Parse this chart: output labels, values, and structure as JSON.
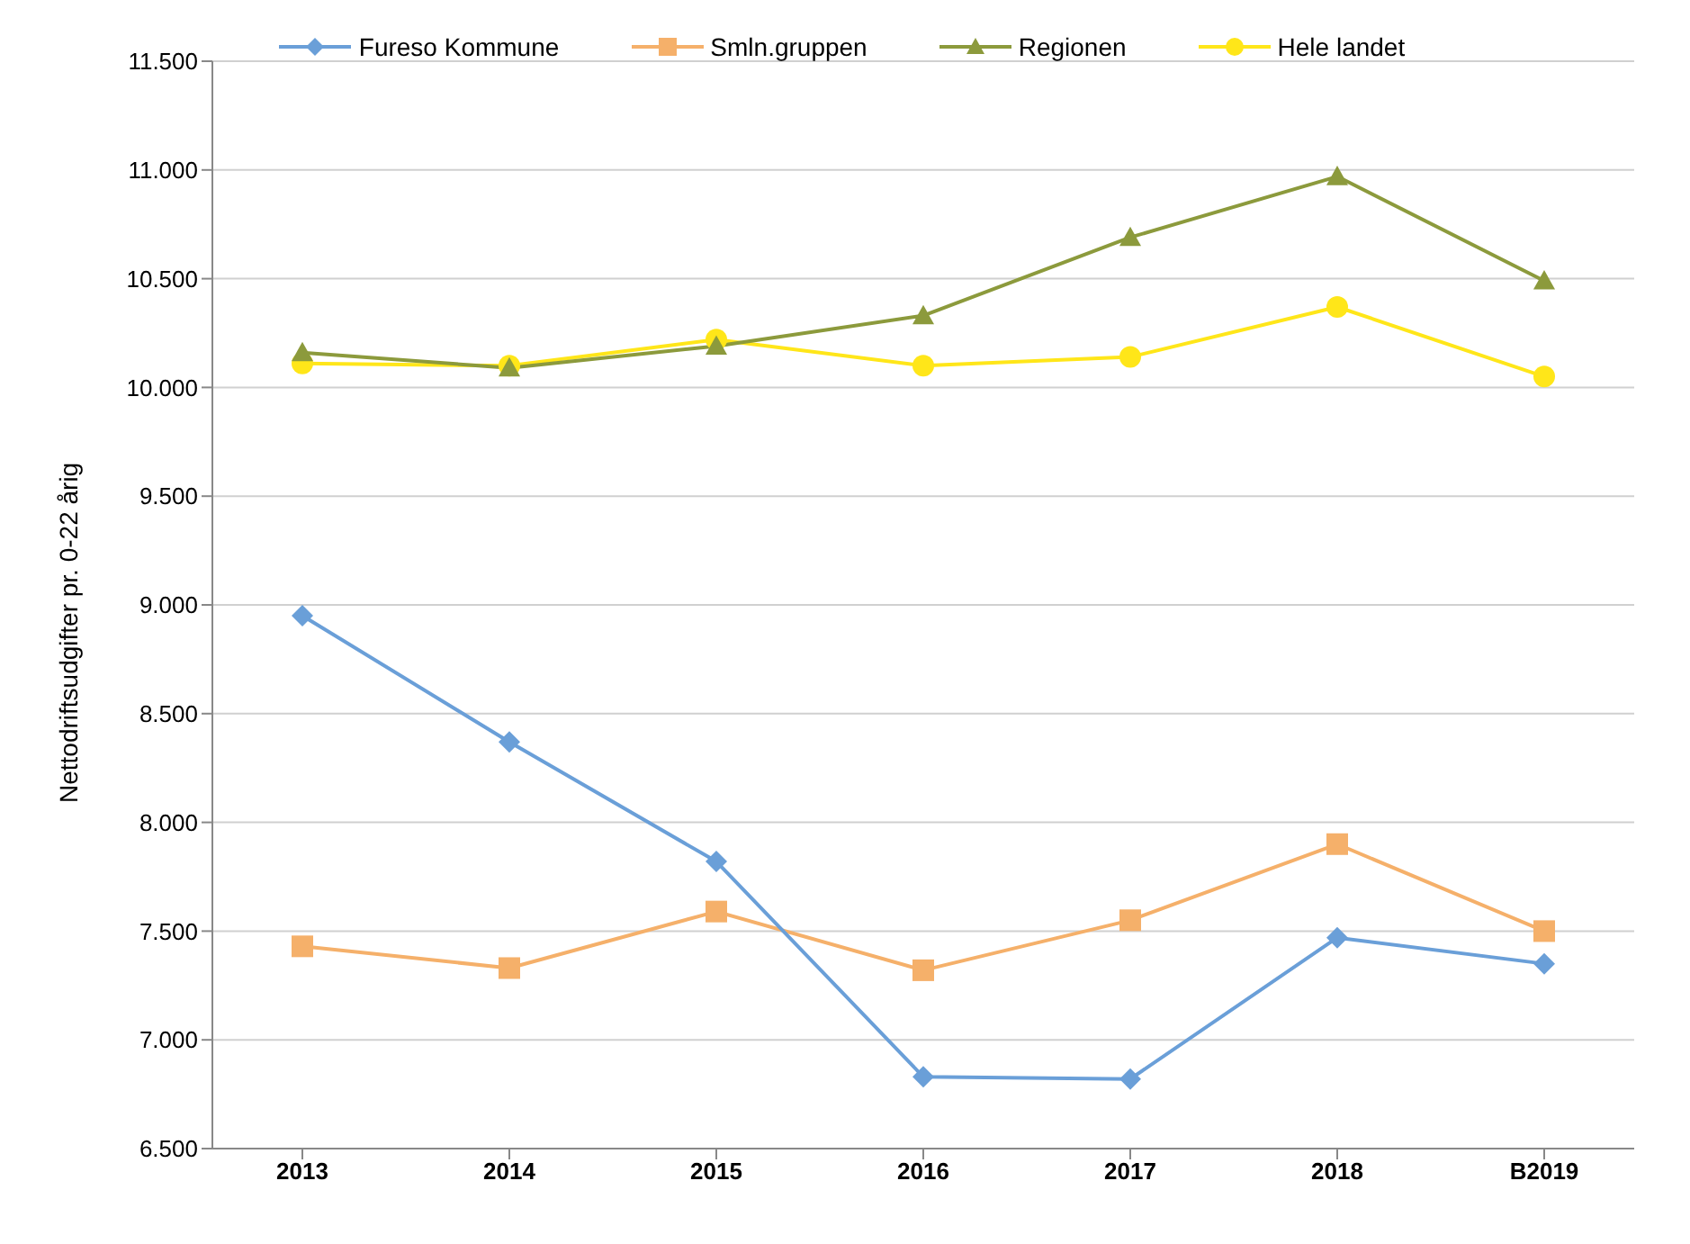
{
  "chart_data": {
    "type": "line",
    "ylabel": "Nettodriftsudgifter pr. 0-22 årig",
    "categories": [
      "2013",
      "2014",
      "2015",
      "2016",
      "2017",
      "2018",
      "B2019"
    ],
    "series": [
      {
        "name": "Fureso Kommune",
        "color": "#6a9fd8",
        "marker": "diamond",
        "values": [
          8950,
          8370,
          7820,
          6830,
          6820,
          7470,
          7350
        ]
      },
      {
        "name": "Smln.gruppen",
        "color": "#f5b06a",
        "marker": "square",
        "values": [
          7430,
          7330,
          7590,
          7320,
          7550,
          7900,
          7500
        ]
      },
      {
        "name": "Regionen",
        "color": "#8c9a3c",
        "marker": "triangle",
        "values": [
          10160,
          10090,
          10190,
          10330,
          10690,
          10970,
          10490
        ]
      },
      {
        "name": "Hele landet",
        "color": "#ffe619",
        "marker": "circle",
        "values": [
          10110,
          10100,
          10220,
          10100,
          10140,
          10370,
          10050
        ]
      }
    ],
    "ylim": [
      6500,
      11500
    ],
    "yticks": [
      {
        "value": 6500,
        "label": "6.500"
      },
      {
        "value": 7000,
        "label": "7.000"
      },
      {
        "value": 7500,
        "label": "7.500"
      },
      {
        "value": 8000,
        "label": "8.000"
      },
      {
        "value": 8500,
        "label": "8.500"
      },
      {
        "value": 9000,
        "label": "9.000"
      },
      {
        "value": 9500,
        "label": "9.500"
      },
      {
        "value": 10000,
        "label": "10.000"
      },
      {
        "value": 10500,
        "label": "10.500"
      },
      {
        "value": 11000,
        "label": "11.000"
      },
      {
        "value": 11500,
        "label": "11.500"
      }
    ],
    "grid": "y",
    "legend": "top"
  }
}
